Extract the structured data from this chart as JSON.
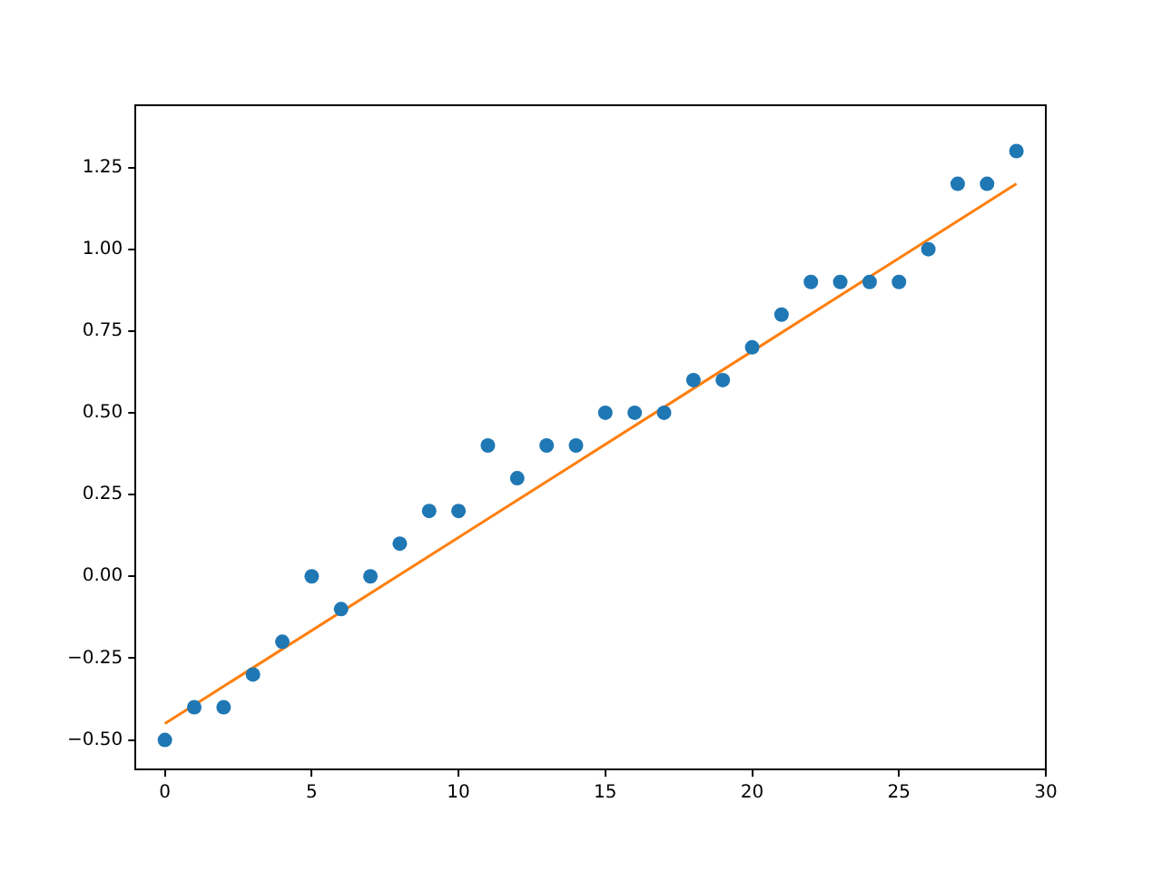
{
  "chart_data": {
    "type": "scatter",
    "xlim": [
      -1,
      30
    ],
    "ylim": [
      -0.59,
      1.44
    ],
    "xticks": [
      0,
      5,
      10,
      15,
      20,
      25,
      30
    ],
    "yticks": [
      {
        "value": -0.5,
        "label": "−0.50"
      },
      {
        "value": -0.25,
        "label": "−0.25"
      },
      {
        "value": 0,
        "label": "0.00"
      },
      {
        "value": 0.25,
        "label": "0.25"
      },
      {
        "value": 0.5,
        "label": "0.50"
      },
      {
        "value": 0.75,
        "label": "0.75"
      },
      {
        "value": 1,
        "label": "1.00"
      },
      {
        "value": 1.25,
        "label": "1.25"
      }
    ],
    "grid": false,
    "legend": false,
    "series": [
      {
        "type": "scatter",
        "color": "#1f77b4",
        "marker": "circle",
        "x": [
          0,
          1,
          2,
          3,
          4,
          5,
          6,
          7,
          8,
          9,
          10,
          11,
          12,
          13,
          14,
          15,
          16,
          17,
          18,
          19,
          20,
          21,
          22,
          23,
          24,
          25,
          26,
          27,
          28,
          29
        ],
        "values": [
          -0.5,
          -0.4,
          -0.4,
          -0.3,
          -0.2,
          0,
          -0.1,
          0,
          0.1,
          0.2,
          0.2,
          0.4,
          0.3,
          0.4,
          0.4,
          0.5,
          0.5,
          0.5,
          0.6,
          0.6,
          0.7,
          0.8,
          0.9,
          0.9,
          0.9,
          0.9,
          1.0,
          1.2,
          1.2,
          1.3
        ]
      },
      {
        "type": "line",
        "color": "#ff7f0e",
        "marker": "none",
        "x": [
          0,
          29
        ],
        "values": [
          -0.45,
          1.2
        ]
      }
    ]
  }
}
